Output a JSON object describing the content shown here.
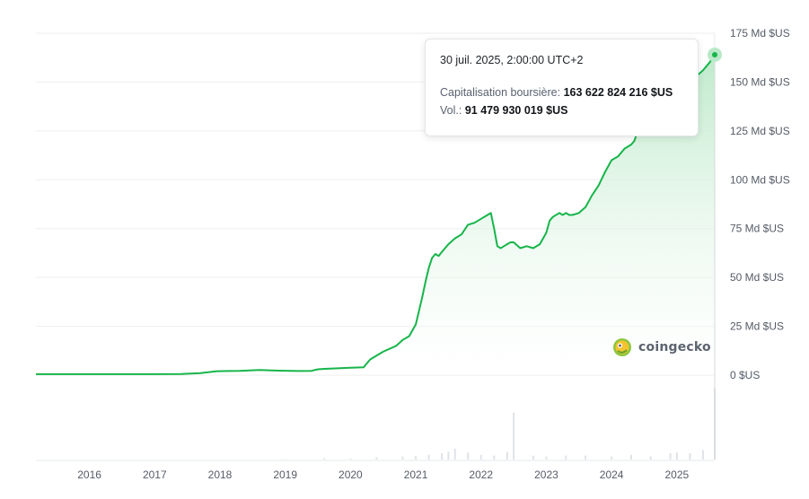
{
  "chart_data": {
    "type": "area",
    "series": [
      {
        "kind": "market_cap",
        "x": [
          2015.18,
          2016.0,
          2017.0,
          2017.4,
          2017.7,
          2017.95,
          2018.3,
          2018.6,
          2018.9,
          2019.2,
          2019.4,
          2019.5,
          2019.6,
          2019.8,
          2020.0,
          2020.2,
          2020.25,
          2020.3,
          2020.35,
          2020.5,
          2020.7,
          2020.8,
          2020.9,
          2021.0,
          2021.05,
          2021.1,
          2021.15,
          2021.2,
          2021.25,
          2021.3,
          2021.35,
          2021.4,
          2021.5,
          2021.6,
          2021.7,
          2021.8,
          2021.9,
          2022.0,
          2022.1,
          2022.15,
          2022.2,
          2022.25,
          2022.3,
          2022.35,
          2022.4,
          2022.45,
          2022.5,
          2022.6,
          2022.7,
          2022.8,
          2022.9,
          2023.0,
          2023.05,
          2023.1,
          2023.2,
          2023.25,
          2023.3,
          2023.35,
          2023.4,
          2023.5,
          2023.6,
          2023.7,
          2023.8,
          2023.9,
          2024.0,
          2024.1,
          2024.2,
          2024.3,
          2024.35,
          2024.4,
          2024.5,
          2024.6,
          2024.65,
          2024.7,
          2024.8,
          2024.9,
          2025.0,
          2025.1,
          2025.2,
          2025.3,
          2025.4,
          2025.5,
          2025.58
        ],
        "y": [
          0.5,
          0.5,
          0.5,
          0.6,
          1,
          2,
          2.2,
          2.6,
          2.3,
          2.1,
          2.2,
          3,
          3.2,
          3.5,
          3.8,
          4,
          6,
          8,
          9,
          12,
          15,
          18,
          20,
          26,
          33,
          40,
          48,
          55,
          60,
          62,
          61,
          63,
          67,
          70,
          72,
          77,
          78,
          80,
          82,
          83,
          75,
          66,
          65,
          66,
          67,
          68,
          68,
          65,
          66,
          65,
          67,
          73,
          79,
          81,
          83,
          82,
          83,
          82,
          82,
          83,
          86,
          92,
          97,
          104,
          110,
          112,
          116,
          118,
          120,
          125,
          129,
          132,
          138,
          140,
          143,
          145,
          147,
          148,
          150,
          153,
          156,
          160,
          164
        ]
      },
      {
        "kind": "volume",
        "x": [
          2015.18,
          2016.0,
          2017.0,
          2018.0,
          2019.0,
          2019.6,
          2020.0,
          2020.4,
          2020.8,
          2021.0,
          2021.2,
          2021.4,
          2021.5,
          2021.6,
          2021.8,
          2022.0,
          2022.2,
          2022.4,
          2022.5,
          2022.8,
          2023.0,
          2023.3,
          2023.6,
          2024.0,
          2024.3,
          2024.6,
          2024.9,
          2025.0,
          2025.2,
          2025.4,
          2025.58
        ],
        "y": [
          0,
          0,
          0,
          0.1,
          0.5,
          2,
          1.5,
          3,
          4,
          4.5,
          6,
          8,
          10,
          14,
          9,
          6,
          5,
          10,
          60,
          5,
          4,
          5,
          5,
          4,
          6,
          4,
          8,
          9,
          8,
          12,
          91.48
        ]
      }
    ],
    "y_ticks": [
      "175 Md $US",
      "150 Md $US",
      "125 Md $US",
      "100 Md $US",
      "75 Md $US",
      "50 Md $US",
      "25 Md $US",
      "0 $US"
    ],
    "y_tick_values": [
      175,
      150,
      125,
      100,
      75,
      50,
      25,
      0
    ],
    "ylim": [
      0,
      175
    ],
    "x_ticks": [
      "2016",
      "2017",
      "2018",
      "2019",
      "2020",
      "2021",
      "2022",
      "2023",
      "2024",
      "2025"
    ],
    "x_tick_values": [
      2016,
      2017,
      2018,
      2019,
      2020,
      2021,
      2022,
      2023,
      2024,
      2025
    ],
    "xlim": [
      2015.18,
      2025.58
    ],
    "volume_ylim": [
      0,
      100
    ],
    "grid": true,
    "colors": {
      "line": "#16b54a",
      "fill_top": "#c8edd4",
      "fill_bottom": "#ffffff",
      "volume": "#dfe3e8",
      "grid": "#eeeeee",
      "marker_halo": "#b9e9c9"
    },
    "tooltip": {
      "date": "30 juil. 2025, 2:00:00 UTC+2",
      "market_cap_label": "Capitalisation boursière:",
      "market_cap_value": "163 622 824 216 $US",
      "volume_label": "Vol.:",
      "volume_value": "91 479 930 019 $US"
    }
  },
  "brand": {
    "name": "coingecko",
    "icon": "gecko-logo-icon"
  }
}
